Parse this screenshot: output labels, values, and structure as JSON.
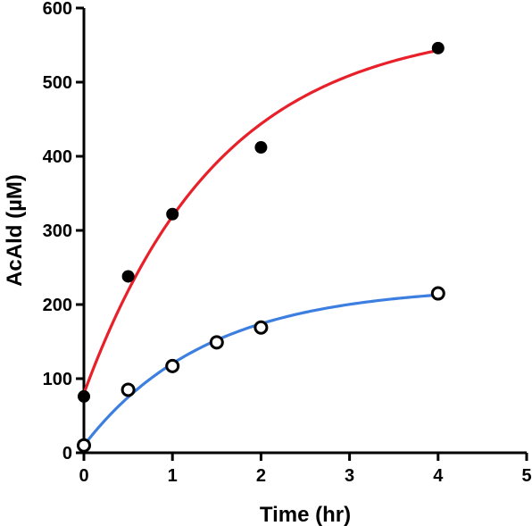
{
  "chart_data": {
    "type": "scatter",
    "title": "",
    "xlabel": "Time (hr)",
    "ylabel": "AcAld (µM)",
    "xlim": [
      0,
      5
    ],
    "ylim": [
      0,
      600
    ],
    "x_ticks": [
      0,
      1,
      2,
      3,
      4,
      5
    ],
    "y_ticks": [
      0,
      100,
      200,
      300,
      400,
      500,
      600
    ],
    "grid": false,
    "legend": "none",
    "series": [
      {
        "marker": "filled-circle",
        "marker_color": "#000000",
        "fit_color": "#e8202a",
        "points": [
          {
            "x": 0,
            "y": 76
          },
          {
            "x": 0.5,
            "y": 238
          },
          {
            "x": 1,
            "y": 322
          },
          {
            "x": 2,
            "y": 412
          },
          {
            "x": 4,
            "y": 546
          }
        ],
        "fit": {
          "model": "one-phase-association",
          "y0": 80,
          "plateau": 580,
          "k": 0.65
        }
      },
      {
        "marker": "open-circle",
        "marker_color": "#000000",
        "fit_color": "#3c7fe0",
        "points": [
          {
            "x": 0,
            "y": 10
          },
          {
            "x": 0.5,
            "y": 85
          },
          {
            "x": 1,
            "y": 117
          },
          {
            "x": 1.5,
            "y": 149
          },
          {
            "x": 2,
            "y": 169
          },
          {
            "x": 4,
            "y": 215
          }
        ],
        "fit": {
          "model": "one-phase-association",
          "y0": 10,
          "plateau": 225,
          "k": 0.72
        }
      }
    ]
  }
}
